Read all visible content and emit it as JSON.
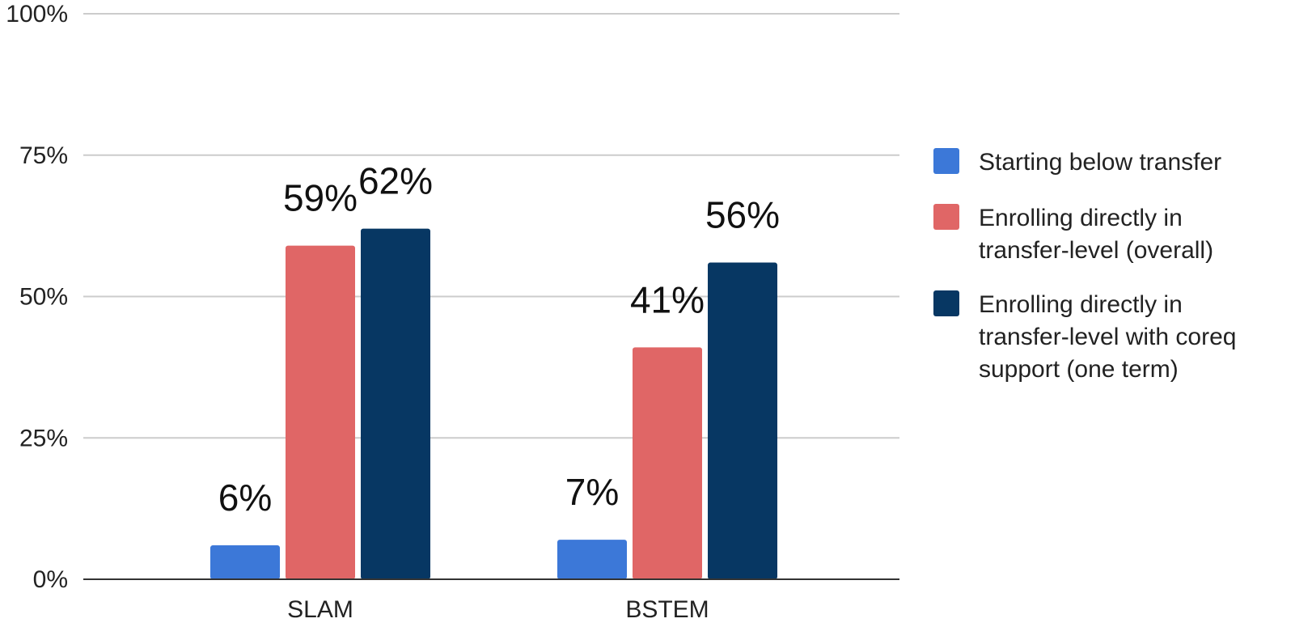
{
  "chart_data": {
    "type": "bar",
    "title": "",
    "xlabel": "",
    "ylabel": "",
    "categories": [
      "SLAM",
      "BSTEM"
    ],
    "series": [
      {
        "name": "Starting below transfer",
        "color": "#3c78d8",
        "values": [
          6,
          7
        ],
        "labels": [
          "6%",
          "7%"
        ]
      },
      {
        "name": "Enrolling directly in transfer-level (overall)",
        "color": "#e06666",
        "values": [
          59,
          41
        ],
        "labels": [
          "59%",
          "41%"
        ]
      },
      {
        "name": "Enrolling directly in transfer-level with coreq support (one term)",
        "color": "#073763",
        "values": [
          62,
          56
        ],
        "labels": [
          "62%",
          "56%"
        ]
      }
    ],
    "ylim": [
      0,
      100
    ],
    "yticks": [
      0,
      25,
      50,
      75,
      100
    ],
    "ytick_labels": [
      "0%",
      "25%",
      "50%",
      "75%",
      "100%"
    ],
    "grid": true,
    "legend_position": "right"
  },
  "legend": {
    "items": [
      {
        "color": "#3c78d8",
        "lines": [
          "Starting below transfer"
        ]
      },
      {
        "color": "#e06666",
        "lines": [
          "Enrolling directly in",
          "transfer-level (overall)"
        ]
      },
      {
        "color": "#073763",
        "lines": [
          "Enrolling directly in",
          "transfer-level with coreq",
          "support (one term)"
        ]
      }
    ]
  }
}
